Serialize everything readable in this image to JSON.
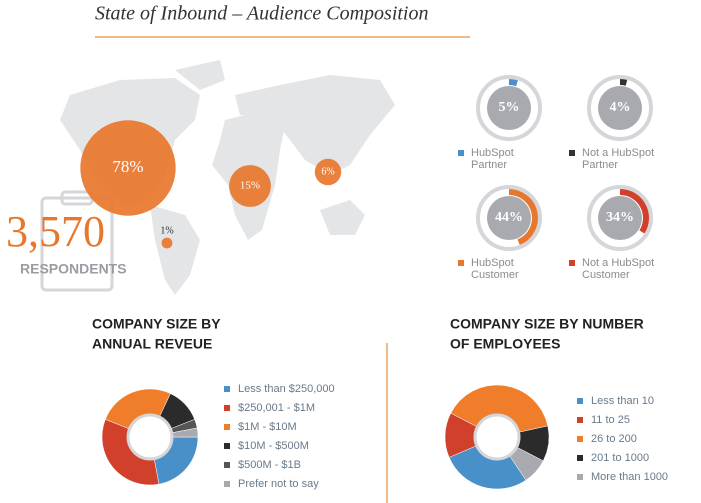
{
  "title": "State of Inbound – Audience Composition",
  "respondents": {
    "count": "3,570",
    "label": "RESPONDENTS"
  },
  "map": {
    "values": [
      78,
      15,
      6,
      1
    ],
    "value_labels": [
      "78%",
      "15%",
      "6%",
      "1%"
    ],
    "color": "#e8772e"
  },
  "gauges": {
    "values": [
      5,
      4,
      44,
      34
    ],
    "value_labels": [
      "5%",
      "4%",
      "44%",
      "34%"
    ],
    "labels": [
      [
        "HubSpot",
        "Partner"
      ],
      [
        "Not a HubSpot",
        "Partner"
      ],
      [
        "HubSpot",
        "Customer"
      ],
      [
        "Not a HubSpot",
        "Customer"
      ]
    ],
    "colors": [
      "#4a90c8",
      "#333333",
      "#e8772e",
      "#d0402a"
    ]
  },
  "chart_data": [
    {
      "type": "pie",
      "title_lines": [
        "COMPANY SIZE BY",
        "ANNUAL REVEUE"
      ],
      "categories": [
        "Less than $250,000",
        "$250,001 - $1M",
        "$1M - $10M",
        "$10M - $500M",
        "$500M - $1B",
        "Prefer not to say"
      ],
      "values": [
        22,
        34,
        26,
        12,
        3,
        3
      ],
      "colors": [
        "#4a90c8",
        "#d0402a",
        "#ef7d2a",
        "#2b2b2b",
        "#555555",
        "#a8aab0"
      ]
    },
    {
      "type": "pie",
      "title_lines": [
        "COMPANY SIZE BY NUMBER",
        "OF EMPLOYEES"
      ],
      "categories": [
        "Less than 10",
        "11 to 25",
        "26 to 200",
        "201 to 1000",
        "More than 1000"
      ],
      "values": [
        28,
        14,
        39,
        11,
        8
      ],
      "colors": [
        "#4a90c8",
        "#d0402a",
        "#ef7d2a",
        "#2b2b2b",
        "#a8aab0"
      ]
    }
  ]
}
